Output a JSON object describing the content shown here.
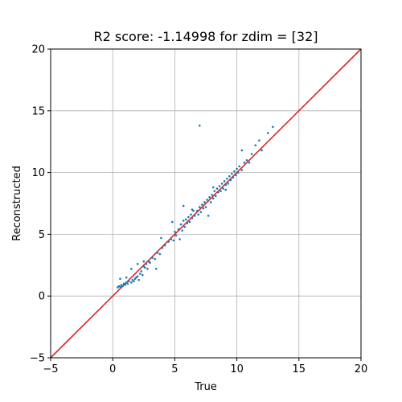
{
  "chart_data": {
    "type": "scatter",
    "title": "R2 score: -1.14998 for zdim = [32]",
    "xlabel": "True",
    "ylabel": "Reconstructed",
    "xlim": [
      -5,
      20
    ],
    "ylim": [
      -5,
      20
    ],
    "xticks": [
      "−5",
      "0",
      "5",
      "10",
      "15",
      "20"
    ],
    "yticks": [
      "−5",
      "0",
      "5",
      "10",
      "15",
      "20"
    ],
    "grid": true,
    "point_color": "#1f77b4",
    "reference_line": {
      "x": [
        -5,
        20
      ],
      "y": [
        -5,
        20
      ],
      "color": "#d62728"
    },
    "points": [
      [
        0.4,
        0.7
      ],
      [
        0.5,
        0.8
      ],
      [
        0.6,
        0.75
      ],
      [
        0.7,
        0.9
      ],
      [
        0.8,
        0.8
      ],
      [
        0.9,
        1.0
      ],
      [
        1.0,
        0.9
      ],
      [
        1.1,
        1.1
      ],
      [
        1.2,
        1.0
      ],
      [
        0.6,
        1.4
      ],
      [
        1.3,
        1.2
      ],
      [
        1.5,
        1.1
      ],
      [
        1.6,
        1.3
      ],
      [
        1.7,
        1.2
      ],
      [
        1.8,
        1.4
      ],
      [
        1.9,
        1.5
      ],
      [
        2.0,
        1.6
      ],
      [
        2.1,
        1.3
      ],
      [
        2.2,
        1.8
      ],
      [
        2.3,
        2.0
      ],
      [
        2.4,
        1.7
      ],
      [
        2.5,
        2.4
      ],
      [
        2.6,
        2.3
      ],
      [
        2.7,
        2.6
      ],
      [
        2.8,
        2.2
      ],
      [
        2.9,
        2.8
      ],
      [
        3.0,
        2.7
      ],
      [
        1.5,
        2.2
      ],
      [
        2.0,
        2.6
      ],
      [
        2.5,
        2.8
      ],
      [
        3.2,
        3.1
      ],
      [
        3.4,
        3.0
      ],
      [
        3.6,
        3.5
      ],
      [
        3.8,
        3.4
      ],
      [
        4.0,
        3.9
      ],
      [
        4.2,
        4.1
      ],
      [
        3.5,
        2.2
      ],
      [
        4.5,
        4.4
      ],
      [
        4.7,
        4.6
      ],
      [
        4.9,
        4.5
      ],
      [
        5.0,
        5.2
      ],
      [
        5.1,
        4.9
      ],
      [
        4.8,
        6.0
      ],
      [
        5.3,
        5.4
      ],
      [
        5.4,
        4.6
      ],
      [
        5.5,
        5.8
      ],
      [
        5.6,
        5.3
      ],
      [
        5.7,
        6.1
      ],
      [
        5.8,
        5.6
      ],
      [
        5.9,
        6.2
      ],
      [
        6.0,
        5.9
      ],
      [
        6.1,
        6.4
      ],
      [
        6.2,
        6.0
      ],
      [
        6.3,
        6.6
      ],
      [
        6.4,
        6.3
      ],
      [
        6.5,
        6.9
      ],
      [
        6.6,
        6.5
      ],
      [
        5.7,
        7.3
      ],
      [
        6.8,
        6.9
      ],
      [
        6.9,
        6.6
      ],
      [
        7.0,
        7.2
      ],
      [
        7.1,
        6.8
      ],
      [
        7.2,
        7.4
      ],
      [
        7.3,
        7.1
      ],
      [
        7.4,
        7.6
      ],
      [
        7.5,
        7.2
      ],
      [
        7.6,
        7.8
      ],
      [
        7.7,
        6.5
      ],
      [
        7.8,
        8.0
      ],
      [
        7.9,
        7.6
      ],
      [
        8.0,
        8.2
      ],
      [
        8.1,
        7.9
      ],
      [
        8.2,
        8.5
      ],
      [
        8.3,
        8.1
      ],
      [
        8.4,
        8.7
      ],
      [
        8.5,
        8.4
      ],
      [
        8.6,
        8.9
      ],
      [
        8.7,
        8.5
      ],
      [
        8.8,
        9.1
      ],
      [
        8.9,
        8.7
      ],
      [
        9.0,
        9.3
      ],
      [
        9.1,
        9.0
      ],
      [
        9.2,
        9.5
      ],
      [
        9.3,
        9.1
      ],
      [
        9.4,
        9.7
      ],
      [
        9.5,
        9.4
      ],
      [
        9.6,
        9.9
      ],
      [
        9.7,
        9.6
      ],
      [
        9.8,
        10.1
      ],
      [
        9.9,
        9.8
      ],
      [
        10.0,
        10.3
      ],
      [
        10.1,
        10.0
      ],
      [
        10.2,
        10.5
      ],
      [
        10.4,
        10.2
      ],
      [
        10.6,
        10.8
      ],
      [
        10.8,
        11.0
      ],
      [
        11.0,
        10.8
      ],
      [
        11.2,
        11.5
      ],
      [
        11.5,
        12.2
      ],
      [
        11.8,
        12.6
      ],
      [
        12.0,
        11.8
      ],
      [
        12.5,
        13.2
      ],
      [
        12.9,
        13.7
      ],
      [
        10.4,
        11.8
      ],
      [
        7.0,
        13.8
      ],
      [
        8.1,
        8.8
      ],
      [
        6.4,
        7.0
      ],
      [
        3.9,
        4.7
      ],
      [
        1.1,
        1.5
      ],
      [
        9.1,
        8.6
      ]
    ]
  }
}
